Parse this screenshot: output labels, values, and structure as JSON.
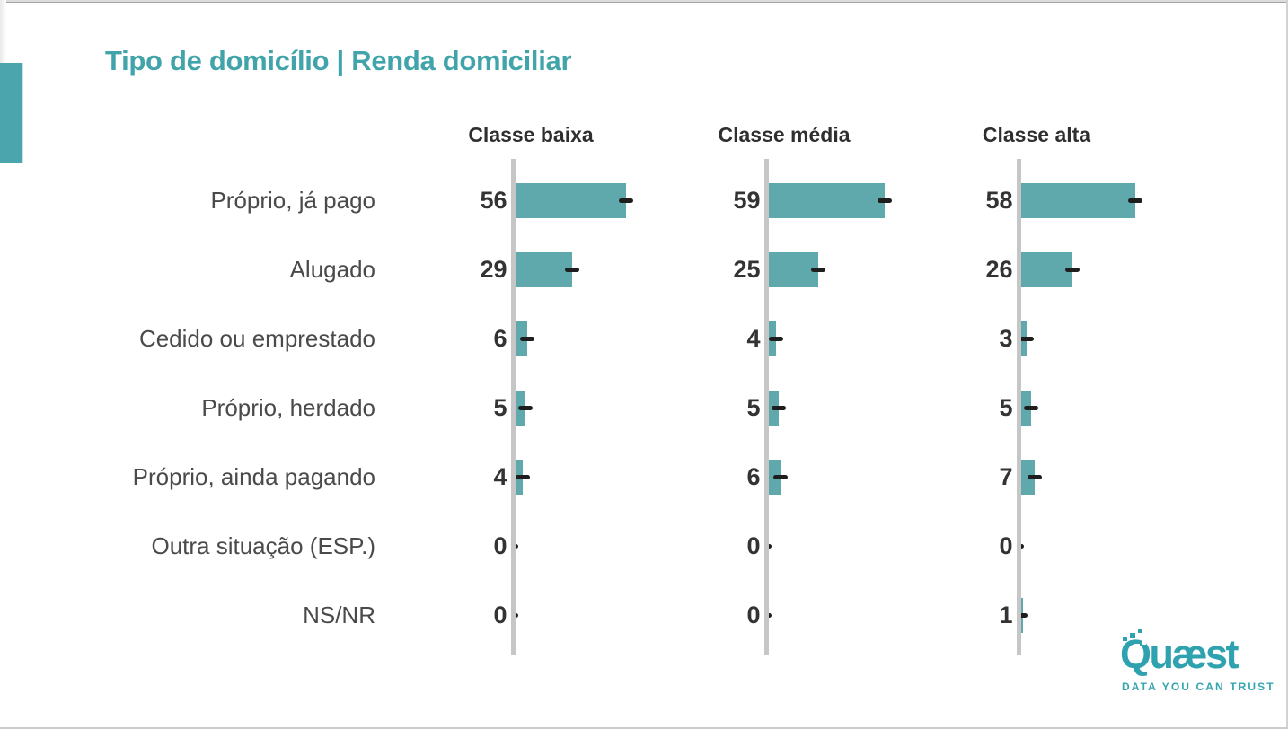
{
  "page": {
    "title": "Tipo de domicílio | Renda domiciliar"
  },
  "chart_data": {
    "type": "bar",
    "orientation": "horizontal",
    "title": "Tipo de domicílio | Renda domiciliar",
    "categories": [
      "Próprio, já pago",
      "Alugado",
      "Cedido ou emprestado",
      "Próprio, herdado",
      "Próprio, ainda pagando",
      "Outra situação (ESP.)",
      "NS/NR"
    ],
    "series": [
      {
        "name": "Classe baixa",
        "values": [
          56,
          29,
          6,
          5,
          4,
          0,
          0
        ]
      },
      {
        "name": "Classe média",
        "values": [
          59,
          25,
          4,
          5,
          6,
          0,
          0
        ]
      },
      {
        "name": "Classe alta",
        "values": [
          58,
          26,
          3,
          5,
          7,
          0,
          1
        ]
      }
    ],
    "value_unit": "percent",
    "xlim": [
      0,
      73
    ],
    "grid": false,
    "legend_position": "column-headers",
    "value_labels": "left-of-axis",
    "marker": "dash-at-bar-end"
  },
  "colors": {
    "bar": "#5FA9AC",
    "marker": "#1E1E1E",
    "axis": "#C6C6C6",
    "title": "#41A4AA",
    "accent_bar": "#4AA5AC",
    "header_text": "#2f2f2f",
    "label_text": "#4A4A4A",
    "value_text": "#333333",
    "logo": "#2EA2AE"
  },
  "branding": {
    "logo_text": "Quæst",
    "tagline": "DATA YOU CAN TRUST"
  }
}
